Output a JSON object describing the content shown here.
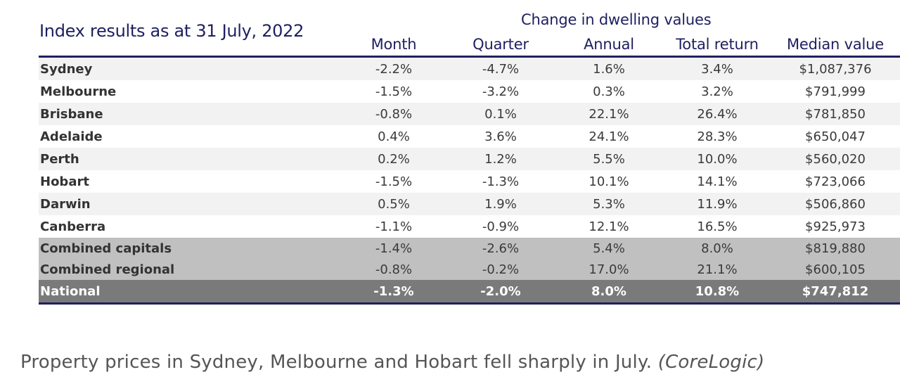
{
  "table_title": "Index results as at 31 July, 2022",
  "group_header": "Change in dwelling values",
  "caption": {
    "text": "Property prices in Sydney, Melbourne and Hobart fell sharply in July.",
    "source": "(CoreLogic)"
  },
  "colors": {
    "header_text": "#1f2060",
    "rule": "#1f2060",
    "row_alt": "#f2f2f2",
    "row_plain": "#ffffff",
    "summary_rows": "#c0c0c0",
    "national_row": "#7a7a7a",
    "national_text": "#ffffff"
  },
  "chart_data": {
    "type": "table",
    "title": "Index results as at 31 July, 2022",
    "group_header": "Change in dwelling values",
    "columns": [
      "Month",
      "Quarter",
      "Annual",
      "Total return",
      "Median value"
    ],
    "rows": [
      {
        "name": "Sydney",
        "values": [
          "-2.2%",
          "-4.7%",
          "1.6%",
          "3.4%",
          "$1,087,376"
        ],
        "style": "alt"
      },
      {
        "name": "Melbourne",
        "values": [
          "-1.5%",
          "-3.2%",
          "0.3%",
          "3.2%",
          "$791,999"
        ],
        "style": "plain"
      },
      {
        "name": "Brisbane",
        "values": [
          "-0.8%",
          "0.1%",
          "22.1%",
          "26.4%",
          "$781,850"
        ],
        "style": "alt"
      },
      {
        "name": "Adelaide",
        "values": [
          "0.4%",
          "3.6%",
          "24.1%",
          "28.3%",
          "$650,047"
        ],
        "style": "plain"
      },
      {
        "name": "Perth",
        "values": [
          "0.2%",
          "1.2%",
          "5.5%",
          "10.0%",
          "$560,020"
        ],
        "style": "alt"
      },
      {
        "name": "Hobart",
        "values": [
          "-1.5%",
          "-1.3%",
          "10.1%",
          "14.1%",
          "$723,066"
        ],
        "style": "plain"
      },
      {
        "name": "Darwin",
        "values": [
          "0.5%",
          "1.9%",
          "5.3%",
          "11.9%",
          "$506,860"
        ],
        "style": "alt"
      },
      {
        "name": "Canberra",
        "values": [
          "-1.1%",
          "-0.9%",
          "12.1%",
          "16.5%",
          "$925,973"
        ],
        "style": "plain"
      },
      {
        "name": "Combined capitals",
        "values": [
          "-1.4%",
          "-2.6%",
          "5.4%",
          "8.0%",
          "$819,880"
        ],
        "style": "summary"
      },
      {
        "name": "Combined regional",
        "values": [
          "-0.8%",
          "-0.2%",
          "17.0%",
          "21.1%",
          "$600,105"
        ],
        "style": "summary"
      },
      {
        "name": "National",
        "values": [
          "-1.3%",
          "-2.0%",
          "8.0%",
          "10.8%",
          "$747,812"
        ],
        "style": "national"
      }
    ]
  }
}
